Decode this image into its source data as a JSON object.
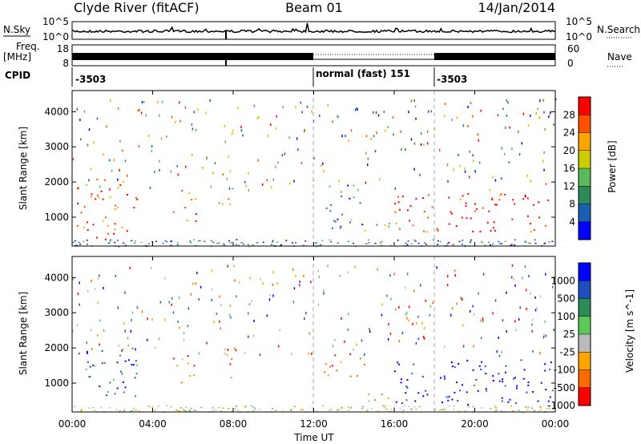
{
  "header": {
    "station": "Clyde River (fitACF)",
    "beam": "Beam 01",
    "date": "14/Jan/2014"
  },
  "top_panels": {
    "nsky_label": "N.Sky",
    "nsearch_label": "N.Search",
    "nsky_ticks": [
      "10^5",
      "10^0"
    ],
    "nsearch_ticks": [
      "10^5",
      "10^0"
    ],
    "freq_label_line1": "Freq.",
    "freq_label_line2": "[MHz]",
    "freq_ticks": [
      "18",
      "8"
    ],
    "nave_label": "Nave",
    "nave_ticks": [
      "60",
      "0"
    ],
    "cpid_label": "CPID",
    "cpid_segments": [
      {
        "label": "-3503",
        "start_hour": 0
      },
      {
        "label": "normal (fast) 151",
        "start_hour": 12
      },
      {
        "label": "-3503",
        "start_hour": 18
      }
    ]
  },
  "colors": {
    "power_scale": [
      "#0000ff",
      "#1a5fb4",
      "#2e8b57",
      "#5cb85c",
      "#cccc00",
      "#ffa500",
      "#ff5000",
      "#ff0000"
    ],
    "velocity_scale": [
      "#0000ff",
      "#1f4fbf",
      "#2e8b57",
      "#5cc85c",
      "#bbbbbb",
      "#ffa500",
      "#ff6a00",
      "#ff0000"
    ]
  },
  "chart_data": [
    {
      "type": "heatmap",
      "name": "power",
      "ylabel": "Slant Range [km]",
      "xlabel": "",
      "yticks": [
        "1000",
        "2000",
        "3000",
        "4000"
      ],
      "ylim": [
        180,
        4600
      ],
      "xlim": [
        0,
        24
      ],
      "colorbar_label": "Power [dB]",
      "colorbar_ticks": [
        "4",
        "8",
        "12",
        "16",
        "20",
        "24",
        "28"
      ],
      "echo_regions": [
        {
          "t0": 0.2,
          "t1": 3.2,
          "r0": 600,
          "r1": 2100,
          "level": 0.8
        },
        {
          "t0": 0.8,
          "t1": 2.2,
          "r0": 250,
          "r1": 600,
          "level": 1.0
        },
        {
          "t0": 5.0,
          "t1": 6.2,
          "r0": 900,
          "r1": 1800,
          "level": 0.7
        },
        {
          "t0": 7.2,
          "t1": 8.0,
          "r0": 1100,
          "r1": 1900,
          "level": 0.6
        },
        {
          "t0": 12.5,
          "t1": 14.5,
          "r0": 700,
          "r1": 2000,
          "level": 0.3
        },
        {
          "t0": 14.5,
          "t1": 16.0,
          "r0": 500,
          "r1": 900,
          "level": 0.4
        },
        {
          "t0": 16.0,
          "t1": 23.9,
          "r0": 600,
          "r1": 1700,
          "level": 0.95
        }
      ]
    },
    {
      "type": "heatmap",
      "name": "velocity",
      "ylabel": "Slant Range [km]",
      "xlabel": "Time UT",
      "yticks": [
        "1000",
        "2000",
        "3000",
        "4000"
      ],
      "ylim": [
        180,
        4600
      ],
      "xlim": [
        0,
        24
      ],
      "xticks": [
        "00:00",
        "04:00",
        "08:00",
        "12:00",
        "16:00",
        "20:00",
        "00:00"
      ],
      "colorbar_label": "Velocity [m s^-1]",
      "colorbar_ticks": [
        "1000",
        "500",
        "100",
        "25",
        "-25",
        "-100",
        "-500",
        "-1000"
      ],
      "echo_regions": [
        {
          "t0": 0.2,
          "t1": 3.2,
          "r0": 600,
          "r1": 2100,
          "level": 0.75
        },
        {
          "t0": 5.0,
          "t1": 6.2,
          "r0": 900,
          "r1": 1800,
          "level": 0.2
        },
        {
          "t0": 7.2,
          "t1": 8.0,
          "r0": 1100,
          "r1": 1900,
          "level": 0.3
        },
        {
          "t0": 12.5,
          "t1": 14.5,
          "r0": 1100,
          "r1": 1900,
          "level": 0.2
        },
        {
          "t0": 14.5,
          "t1": 16.0,
          "r0": 500,
          "r1": 900,
          "level": 0.25
        },
        {
          "t0": 16.0,
          "t1": 23.9,
          "r0": 400,
          "r1": 1700,
          "level": 0.95
        }
      ]
    }
  ]
}
